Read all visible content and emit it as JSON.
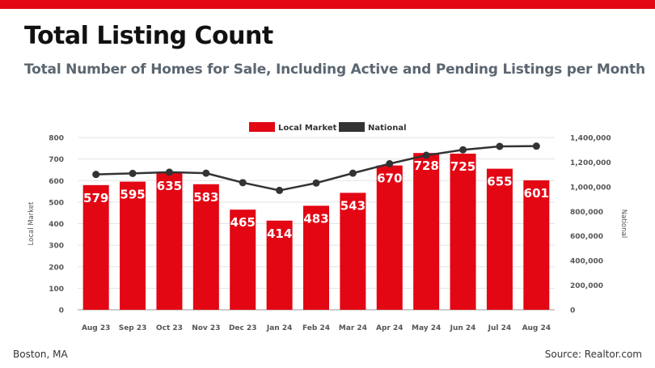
{
  "page": {
    "title": "Total Listing Count",
    "subtitle": "Total Number of Homes for Sale, Including Active and Pending Listings per Month",
    "footer_left": "Boston, MA",
    "footer_right": "Source: Realtor.com"
  },
  "colors": {
    "accent": "#e30613",
    "bar": "#e30613",
    "line": "#333333",
    "subtitle": "#5b6670"
  },
  "chart_data": {
    "type": "bar",
    "categories": [
      "Aug 23",
      "Sep 23",
      "Oct 23",
      "Nov 23",
      "Dec 23",
      "Jan 24",
      "Feb 24",
      "Mar 24",
      "Apr 24",
      "May 24",
      "Jun 24",
      "Jul 24",
      "Aug 24"
    ],
    "series": [
      {
        "name": "Local Market",
        "type": "bar",
        "axis": "left",
        "values": [
          579,
          595,
          635,
          583,
          465,
          414,
          483,
          543,
          670,
          728,
          725,
          655,
          601
        ]
      },
      {
        "name": "National",
        "type": "line",
        "axis": "right",
        "values": [
          1100000,
          1108000,
          1118000,
          1110000,
          1033000,
          970000,
          1030000,
          1110000,
          1187000,
          1255000,
          1300000,
          1328000,
          1330000
        ]
      }
    ],
    "ylabel": "Local Market",
    "y2label": "National",
    "ylim": [
      0,
      800
    ],
    "y2lim": [
      0,
      1400000
    ],
    "yticks": [
      "0",
      "100",
      "200",
      "300",
      "400",
      "500",
      "600",
      "700",
      "800"
    ],
    "y2ticks": [
      "0",
      "200,000",
      "400,000",
      "600,000",
      "800,000",
      "1,000,000",
      "1,200,000",
      "1,400,000"
    ],
    "grid": true,
    "legend_position": "top-center"
  }
}
